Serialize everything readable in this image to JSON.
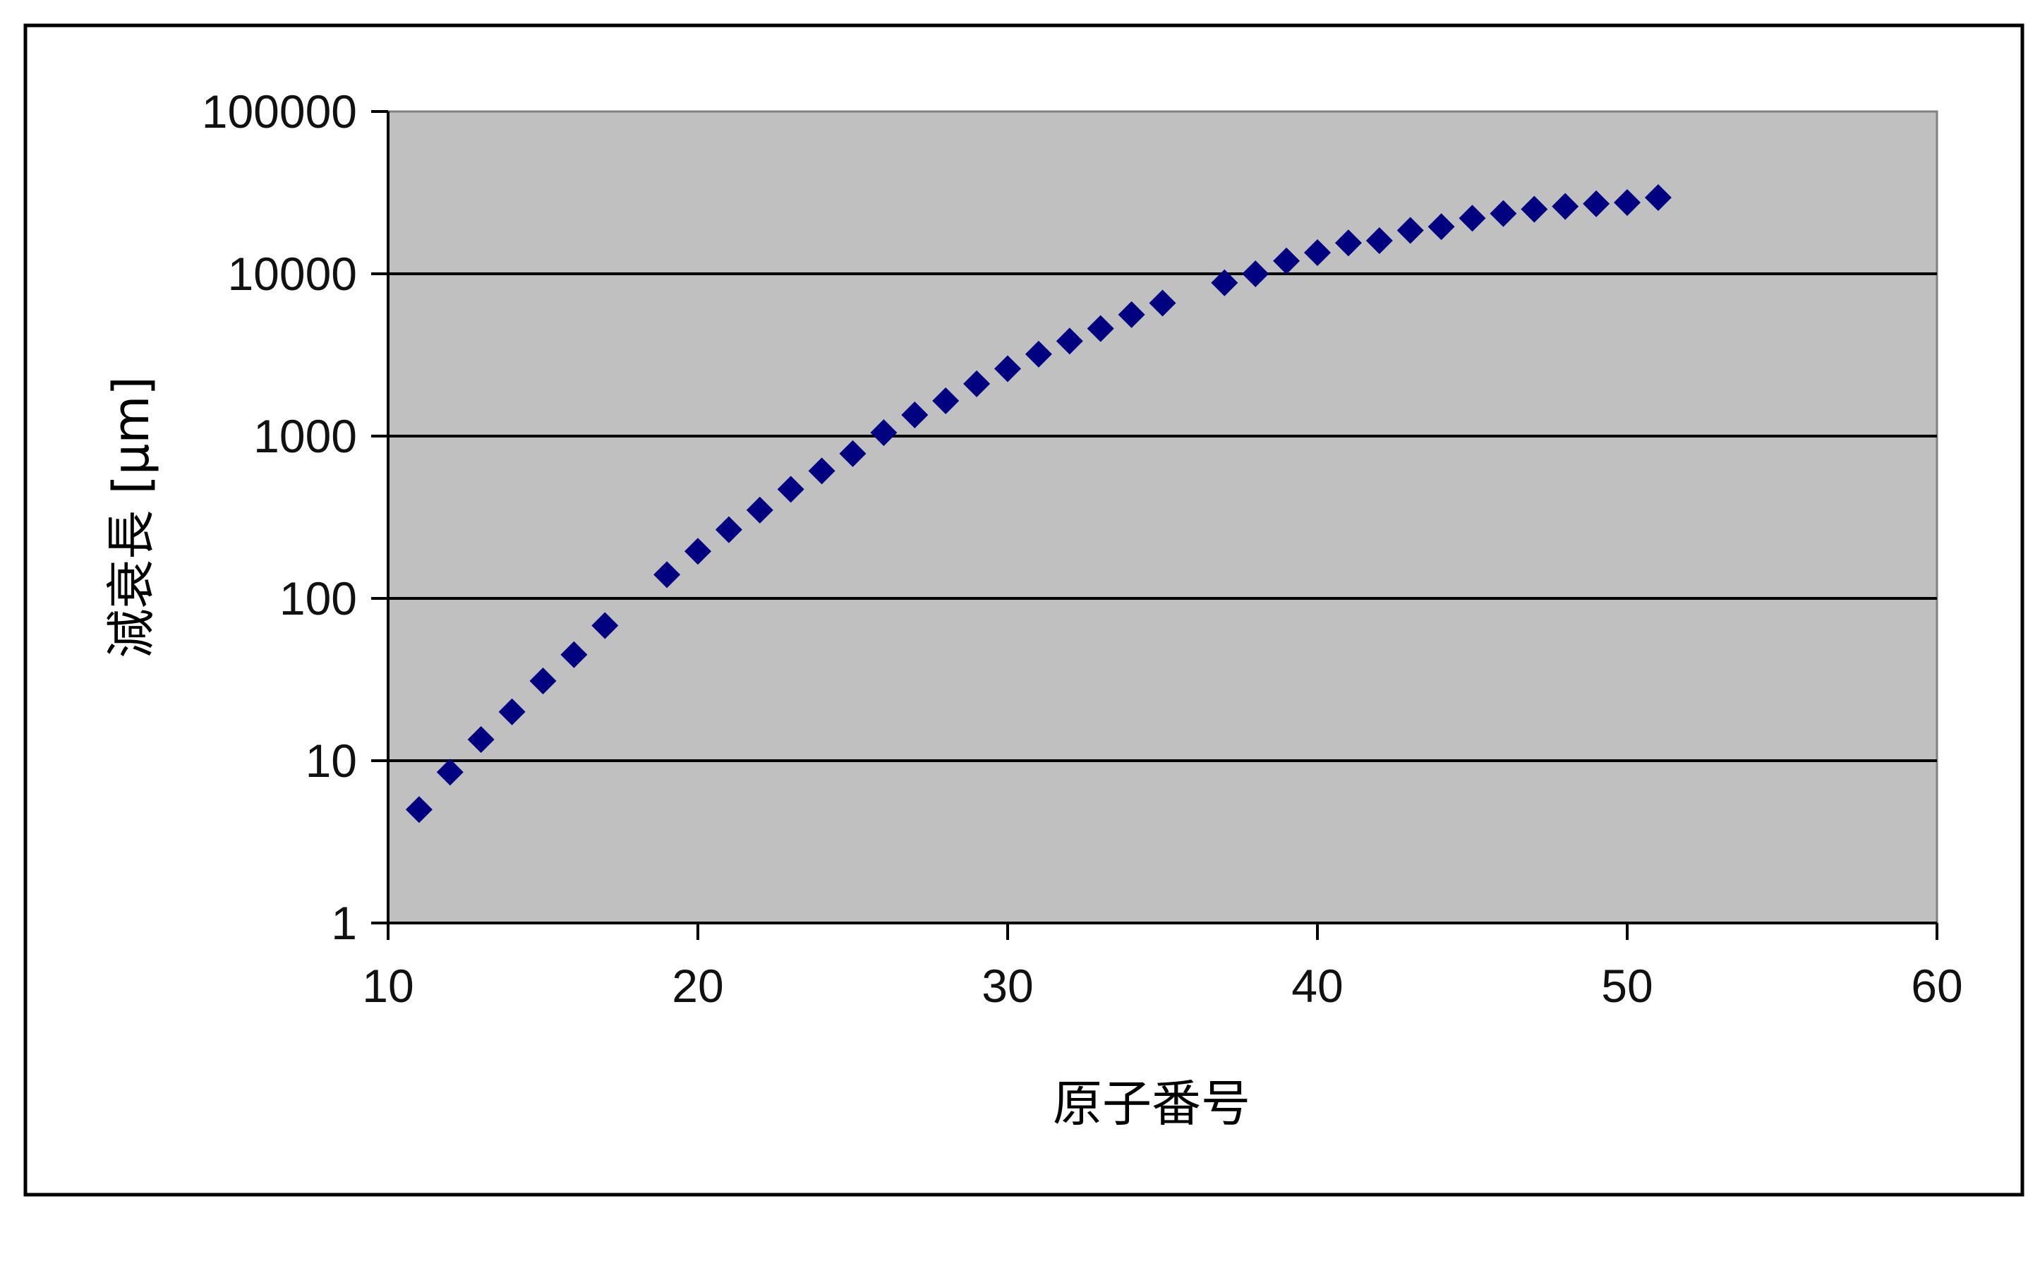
{
  "chart_data": {
    "type": "scatter",
    "title": "",
    "xlabel": "原子番号",
    "ylabel": "減衰長 [μm]",
    "xlim": [
      10,
      60
    ],
    "ylim": [
      1,
      100000
    ],
    "yscale": "log",
    "grid": "horizontal major gridlines",
    "legend": "none",
    "x_ticks": [
      "10",
      "20",
      "30",
      "40",
      "50",
      "60"
    ],
    "y_ticks": [
      "1",
      "10",
      "100",
      "1000",
      "10000",
      "100000"
    ],
    "marker": "diamond",
    "colors": {
      "marker": "#000080",
      "plot_background": "#c0c0c0",
      "gridline": "#000000"
    },
    "series": [
      {
        "x": [
          11,
          12,
          13,
          14,
          15,
          16,
          17,
          19,
          20,
          21,
          22,
          23,
          24,
          25,
          26,
          27,
          28,
          29,
          30,
          31,
          32,
          33,
          34,
          35,
          37,
          38,
          39,
          40,
          41,
          42,
          43,
          44,
          45,
          46,
          47,
          48,
          49,
          50,
          51
        ],
        "y": [
          5,
          8.5,
          13.5,
          20,
          31,
          45,
          68,
          140,
          195,
          265,
          350,
          470,
          610,
          780,
          1050,
          1350,
          1650,
          2100,
          2600,
          3200,
          3850,
          4600,
          5600,
          6600,
          8800,
          10000,
          12000,
          13500,
          15500,
          16000,
          18500,
          19500,
          22000,
          23500,
          25000,
          26000,
          27000,
          27500,
          29500
        ]
      }
    ]
  }
}
